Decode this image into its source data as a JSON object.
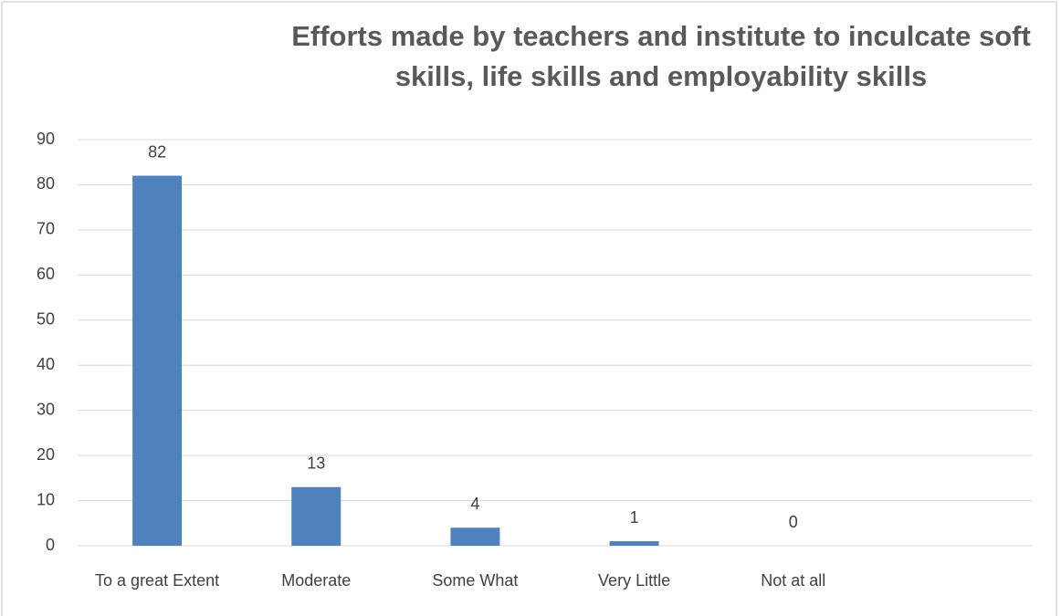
{
  "chart_data": {
    "type": "bar",
    "title": "Efforts made by teachers and institute to inculcate soft skills, life skills and employability skills",
    "categories": [
      "To a great Extent",
      "Moderate",
      "Some What",
      "Very Little",
      "Not at all",
      null
    ],
    "values": [
      82,
      13,
      4,
      1,
      0,
      null
    ],
    "color": "#4f81bd",
    "ylim": [
      0,
      90
    ],
    "yticks": [
      0,
      10,
      20,
      30,
      40,
      50,
      60,
      70,
      80,
      90
    ],
    "grid": true
  }
}
